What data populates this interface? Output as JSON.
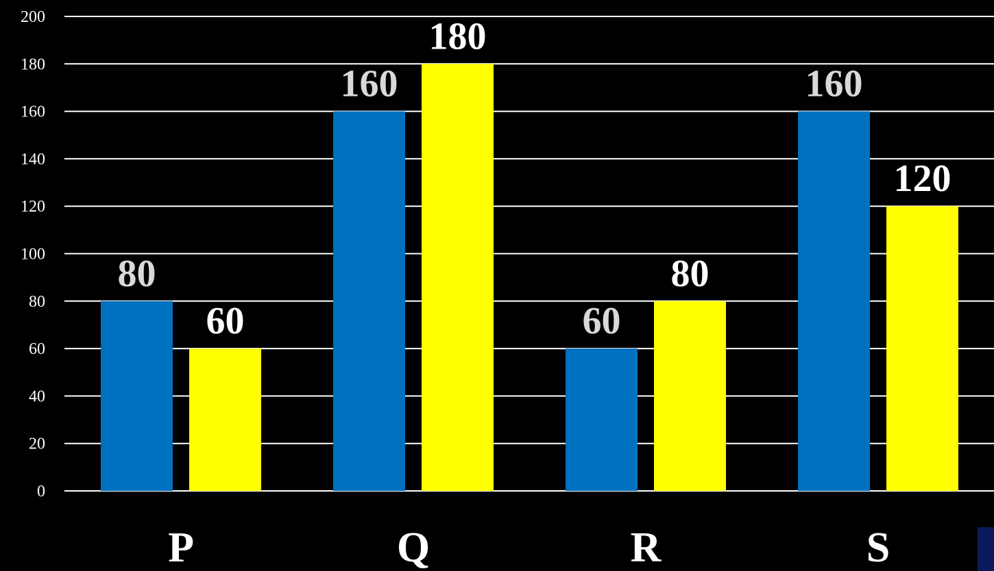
{
  "chart_data": {
    "type": "bar",
    "categories": [
      "P",
      "Q",
      "R",
      "S"
    ],
    "series": [
      {
        "values": [
          80,
          160,
          60,
          160
        ],
        "color": "#0070c0",
        "label_color": "#d9d9d9"
      },
      {
        "values": [
          60,
          180,
          80,
          120
        ],
        "color": "#ffff00",
        "label_color": "#ffffff"
      }
    ],
    "ylim": [
      0,
      200
    ],
    "y_ticks": [
      0,
      20,
      40,
      60,
      80,
      100,
      120,
      140,
      160,
      180,
      200
    ],
    "y_tick_labels": [
      "0",
      "20",
      "40",
      "60",
      "80",
      "100",
      "120",
      "140",
      "160",
      "180",
      "200"
    ],
    "data_labels": [
      [
        "80",
        "160",
        "60",
        "160"
      ],
      [
        "60",
        "180",
        "80",
        "120"
      ]
    ],
    "grid": true,
    "legend": "none",
    "title": "",
    "xlabel": "",
    "ylabel": ""
  },
  "colors": {
    "background": "#000000",
    "grid": "#ffffff",
    "text": "#ffffff",
    "corner_block": "#0a1a5c"
  }
}
